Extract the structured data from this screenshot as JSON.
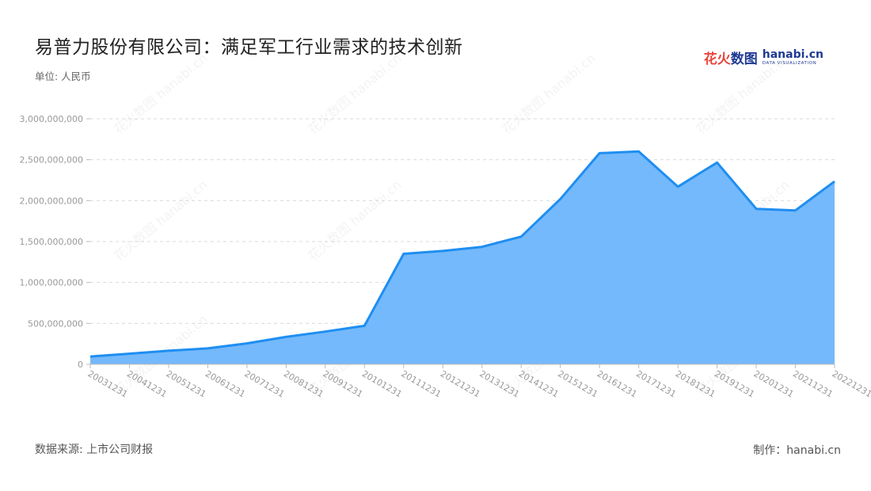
{
  "header": {
    "title": "易普力股份有限公司：满足军工行业需求的技术创新",
    "unit": "单位: 人民币"
  },
  "brand": {
    "logo_cn_prefix": "花火",
    "logo_cn_suffix": "数图",
    "logo_en": "hanabi.cn",
    "logo_sub": "DATA VISUALIZATION"
  },
  "footer": {
    "source": "数据来源: 上市公司财报",
    "credit": "制作：hanabi.cn"
  },
  "colors": {
    "area_fill": "#74b9fb",
    "line": "#1f8ef1",
    "grid": "#d9d9d9",
    "axis_text": "#999999"
  },
  "chart_data": {
    "type": "area",
    "title": "易普力股份有限公司：满足军工行业需求的技术创新",
    "ylabel": "单位: 人民币",
    "xlabel": "",
    "ylim": [
      0,
      3000000000
    ],
    "yticks": [
      "0",
      "500,000,000",
      "1,000,000,000",
      "1,500,000,000",
      "2,000,000,000",
      "2,500,000,000",
      "3,000,000,000"
    ],
    "grid": true,
    "categories": [
      "20031231",
      "20041231",
      "20051231",
      "20061231",
      "20071231",
      "20081231",
      "20091231",
      "20101231",
      "20111231",
      "20121231",
      "20131231",
      "20141231",
      "20151231",
      "20161231",
      "20171231",
      "20181231",
      "20191231",
      "20201231",
      "20211231",
      "20221231"
    ],
    "series": [
      {
        "values": [
          95000000,
          130000000,
          165000000,
          195000000,
          255000000,
          335000000,
          400000000,
          470000000,
          1350000000,
          1385000000,
          1435000000,
          1560000000,
          2020000000,
          2580000000,
          2600000000,
          2170000000,
          2465000000,
          1900000000,
          1880000000,
          2235000000
        ]
      }
    ]
  }
}
